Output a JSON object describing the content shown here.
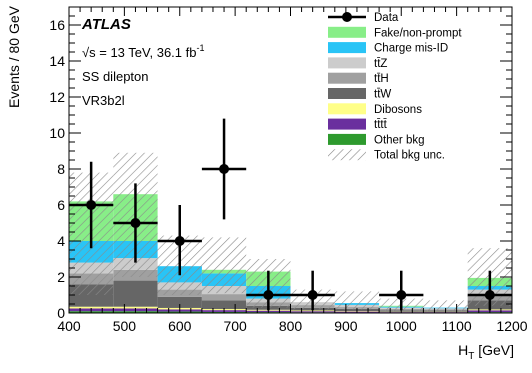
{
  "chart_data": {
    "type": "histogram",
    "xlabel_main": "H",
    "xlabel_sub": "T",
    "xlabel_unit": " [GeV]",
    "ylabel": "Events / 80 GeV",
    "xlim": [
      400,
      1200
    ],
    "ylim": [
      0,
      17
    ],
    "x_ticks": [
      400,
      500,
      600,
      700,
      800,
      900,
      1000,
      1100,
      1200
    ],
    "y_ticks": [
      0,
      2,
      4,
      6,
      8,
      10,
      12,
      14,
      16
    ],
    "bin_edges": [
      400,
      480,
      560,
      640,
      720,
      800,
      880,
      960,
      1040,
      1120,
      1200
    ],
    "stack_order": [
      "other",
      "tttt",
      "dibosons",
      "ttW",
      "ttH",
      "ttZ",
      "chargemisid",
      "fake"
    ],
    "series": [
      {
        "key": "other",
        "name": "Other bkg",
        "color": "#2e9a2e",
        "values": [
          0.1,
          0.1,
          0.08,
          0.06,
          0.05,
          0.04,
          0.03,
          0.02,
          0.02,
          0.05
        ]
      },
      {
        "key": "tttt",
        "name": "tt̄tt̄",
        "color": "#6a2f9e",
        "values": [
          0.15,
          0.15,
          0.12,
          0.1,
          0.08,
          0.06,
          0.05,
          0.03,
          0.03,
          0.1
        ]
      },
      {
        "key": "dibosons",
        "name": "Dibosons",
        "color": "#ffff88",
        "values": [
          0.1,
          0.1,
          0.08,
          0.06,
          0.05,
          0.04,
          0.03,
          0.02,
          0.02,
          0.05
        ]
      },
      {
        "key": "ttW",
        "name": "tt̄W",
        "color": "#666666",
        "values": [
          1.25,
          1.45,
          0.62,
          0.48,
          0.22,
          0.15,
          0.12,
          0.08,
          0.08,
          0.5
        ]
      },
      {
        "key": "ttH",
        "name": "tt̄H",
        "color": "#a0a0a0",
        "values": [
          0.6,
          0.6,
          0.4,
          0.35,
          0.2,
          0.15,
          0.1,
          0.08,
          0.06,
          0.3
        ]
      },
      {
        "key": "ttZ",
        "name": "tt̄Z",
        "color": "#cccccc",
        "values": [
          0.6,
          0.65,
          0.4,
          0.45,
          0.2,
          0.16,
          0.12,
          0.07,
          0.05,
          0.3
        ]
      },
      {
        "key": "chargemisid",
        "name": "Charge mis-ID",
        "color": "#29c4f6",
        "values": [
          1.2,
          0.95,
          0.9,
          0.7,
          0.7,
          0.0,
          0.1,
          0.05,
          0.04,
          0.2
        ]
      },
      {
        "key": "fake",
        "name": "Fake/non-prompt",
        "color": "#88ee88",
        "values": [
          2.2,
          2.6,
          0.0,
          0.2,
          0.8,
          0.0,
          0.0,
          0.05,
          0.0,
          0.45
        ]
      }
    ],
    "total_unc_band": {
      "name": "Total bkg unc.",
      "low": [
        1.0,
        2.0,
        1.0,
        1.1,
        0.3,
        0.2,
        0.2,
        0.1,
        0.1,
        0.4
      ],
      "high": [
        7.8,
        8.9,
        4.3,
        4.2,
        3.0,
        1.3,
        1.2,
        0.8,
        0.7,
        3.6
      ]
    },
    "data": {
      "name": "Data",
      "x": [
        440,
        520,
        600,
        680,
        760,
        840,
        1000,
        1160
      ],
      "y": [
        6,
        5,
        4,
        8,
        1,
        1,
        1,
        1
      ],
      "yerr_low": [
        2.4,
        2.2,
        1.9,
        2.8,
        0.85,
        0.85,
        0.85,
        0.85
      ],
      "yerr_high": [
        2.4,
        2.2,
        2.0,
        2.8,
        1.35,
        1.35,
        1.35,
        1.35
      ]
    },
    "legend": [
      "Data",
      "Fake/non-prompt",
      "Charge mis-ID",
      "tt̄Z",
      "tt̄H",
      "tt̄W",
      "Dibosons",
      "tt̄tt̄",
      "Other bkg",
      "Total bkg unc."
    ],
    "annotations": {
      "experiment": "ATLAS",
      "energy": "√s = 13 TeV, 36.1 fb",
      "energy_sup": "-1",
      "channel": "SS dilepton",
      "region": "VR3b2l"
    }
  }
}
